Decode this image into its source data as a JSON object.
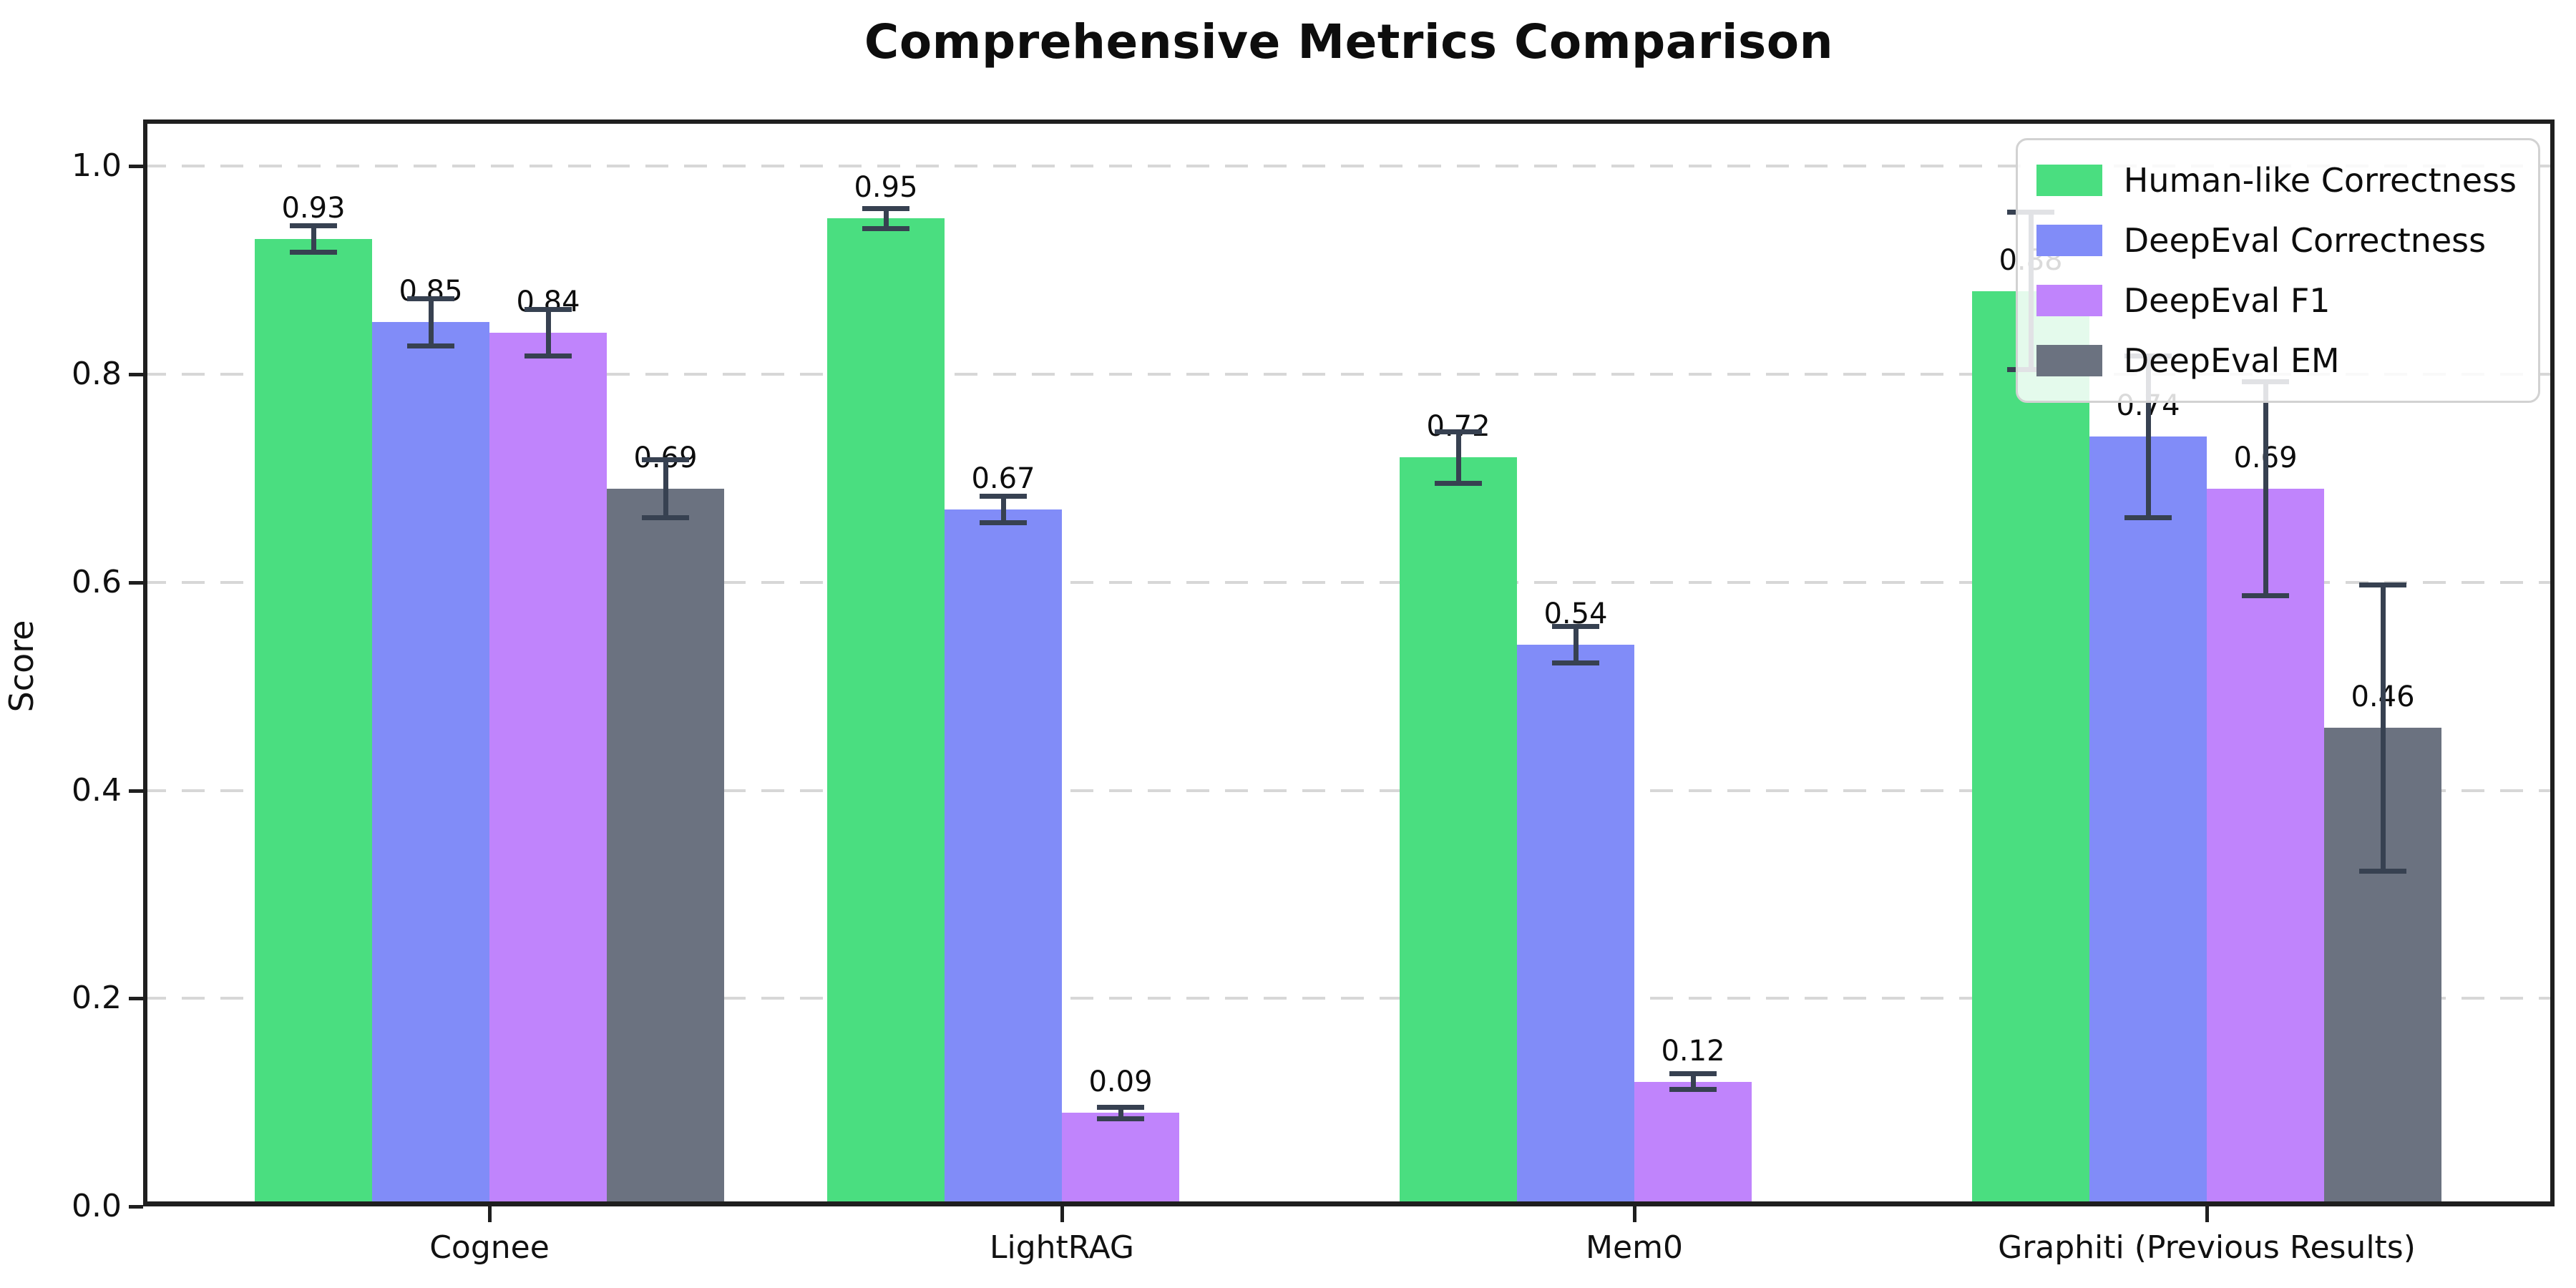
{
  "figure": {
    "title": "Comprehensive Metrics Comparison",
    "ylabel": "Score"
  },
  "chart_data": {
    "type": "bar",
    "title": "Comprehensive Metrics Comparison",
    "xlabel": "",
    "ylabel": "Score",
    "categories": [
      "Cognee",
      "LightRAG",
      "Mem0",
      "Graphiti (Previous Results)"
    ],
    "series": [
      {
        "name": "Human-like Correctness",
        "color": "#4ade80",
        "values": [
          0.93,
          0.95,
          0.72,
          0.88
        ],
        "errors": [
          0.015,
          0.012,
          0.027,
          0.078
        ]
      },
      {
        "name": "DeepEval Correctness",
        "color": "#818cf8",
        "values": [
          0.85,
          0.67,
          0.54,
          0.74
        ],
        "errors": [
          0.025,
          0.015,
          0.02,
          0.08
        ]
      },
      {
        "name": "DeepEval F1",
        "color": "#c084fc",
        "values": [
          0.84,
          0.09,
          0.12,
          0.69
        ],
        "errors": [
          0.025,
          0.008,
          0.01,
          0.105
        ]
      },
      {
        "name": "DeepEval EM",
        "color": "#6b7280",
        "values": [
          0.69,
          0.0,
          0.0,
          0.46
        ],
        "errors": [
          0.03,
          0.004,
          0.004,
          0.14
        ]
      }
    ],
    "bar_value_labels": [
      [
        "0.93",
        "0.95",
        "0.72",
        "0.88"
      ],
      [
        "0.85",
        "0.67",
        "0.54",
        "0.74"
      ],
      [
        "0.84",
        "0.09",
        "0.12",
        "0.69"
      ],
      [
        "0.69",
        "",
        "",
        "0.46"
      ]
    ],
    "yticks": [
      "0.0",
      "0.2",
      "0.4",
      "0.6",
      "0.8",
      "1.0"
    ],
    "ylim": [
      0,
      1.045
    ],
    "grid": "horizontal-dashed",
    "error_bar_color": "#374151",
    "legend": {
      "position": "upper-right",
      "entries": [
        "Human-like Correctness",
        "DeepEval Correctness",
        "DeepEval F1",
        "DeepEval EM"
      ]
    }
  }
}
